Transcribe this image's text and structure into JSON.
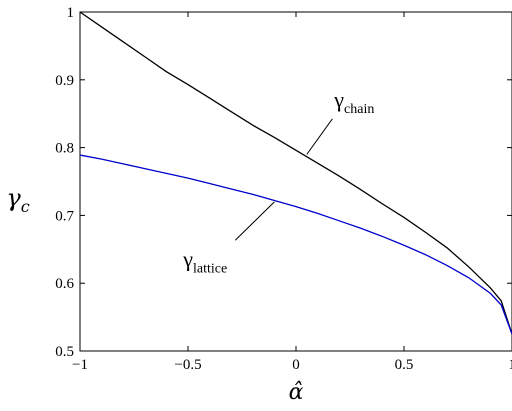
{
  "chart_data": {
    "type": "line",
    "title": "",
    "xlabel": "α̂",
    "ylabel": "γ",
    "ylabel_subscript": "c",
    "xlim": [
      -1,
      1
    ],
    "ylim": [
      0.5,
      1
    ],
    "xticks": [
      -1,
      -0.5,
      0,
      0.5,
      1
    ],
    "xtick_labels": [
      "−1",
      "−0.5",
      "0",
      "0.5",
      "1"
    ],
    "yticks": [
      0.5,
      0.6,
      0.7,
      0.8,
      0.9,
      1
    ],
    "ytick_labels": [
      "0.5",
      "0.6",
      "0.7",
      "0.8",
      "0.9",
      "1"
    ],
    "grid": false,
    "series": [
      {
        "name": "γchain",
        "color": "#000000",
        "x": [
          -1,
          -0.9,
          -0.8,
          -0.7,
          -0.6,
          -0.5,
          -0.4,
          -0.3,
          -0.2,
          -0.1,
          0,
          0.1,
          0.2,
          0.3,
          0.4,
          0.5,
          0.6,
          0.7,
          0.8,
          0.9,
          0.95,
          1
        ],
        "y": [
          1.0,
          0.978,
          0.956,
          0.934,
          0.912,
          0.893,
          0.873,
          0.853,
          0.833,
          0.815,
          0.796,
          0.777,
          0.758,
          0.738,
          0.717,
          0.697,
          0.675,
          0.652,
          0.624,
          0.593,
          0.574,
          0.525
        ]
      },
      {
        "name": "γlattice",
        "color": "#0000cc",
        "x": [
          -1,
          -0.9,
          -0.8,
          -0.7,
          -0.6,
          -0.5,
          -0.4,
          -0.3,
          -0.2,
          -0.1,
          0,
          0.1,
          0.2,
          0.3,
          0.4,
          0.5,
          0.6,
          0.7,
          0.8,
          0.9,
          0.95,
          1
        ],
        "y": [
          0.789,
          0.783,
          0.776,
          0.769,
          0.762,
          0.755,
          0.747,
          0.739,
          0.731,
          0.722,
          0.713,
          0.703,
          0.692,
          0.681,
          0.669,
          0.656,
          0.642,
          0.626,
          0.608,
          0.585,
          0.568,
          0.525
        ]
      }
    ],
    "annotations": [
      {
        "series": 0,
        "text_main": "γ",
        "text_sub": "chain",
        "point": [
          0.05,
          0.79
        ],
        "text_at": [
          0.27,
          0.86
        ]
      },
      {
        "series": 1,
        "text_main": "γ",
        "text_sub": "lattice",
        "point": [
          -0.1,
          0.72
        ],
        "text_at": [
          -0.42,
          0.625
        ]
      }
    ]
  }
}
